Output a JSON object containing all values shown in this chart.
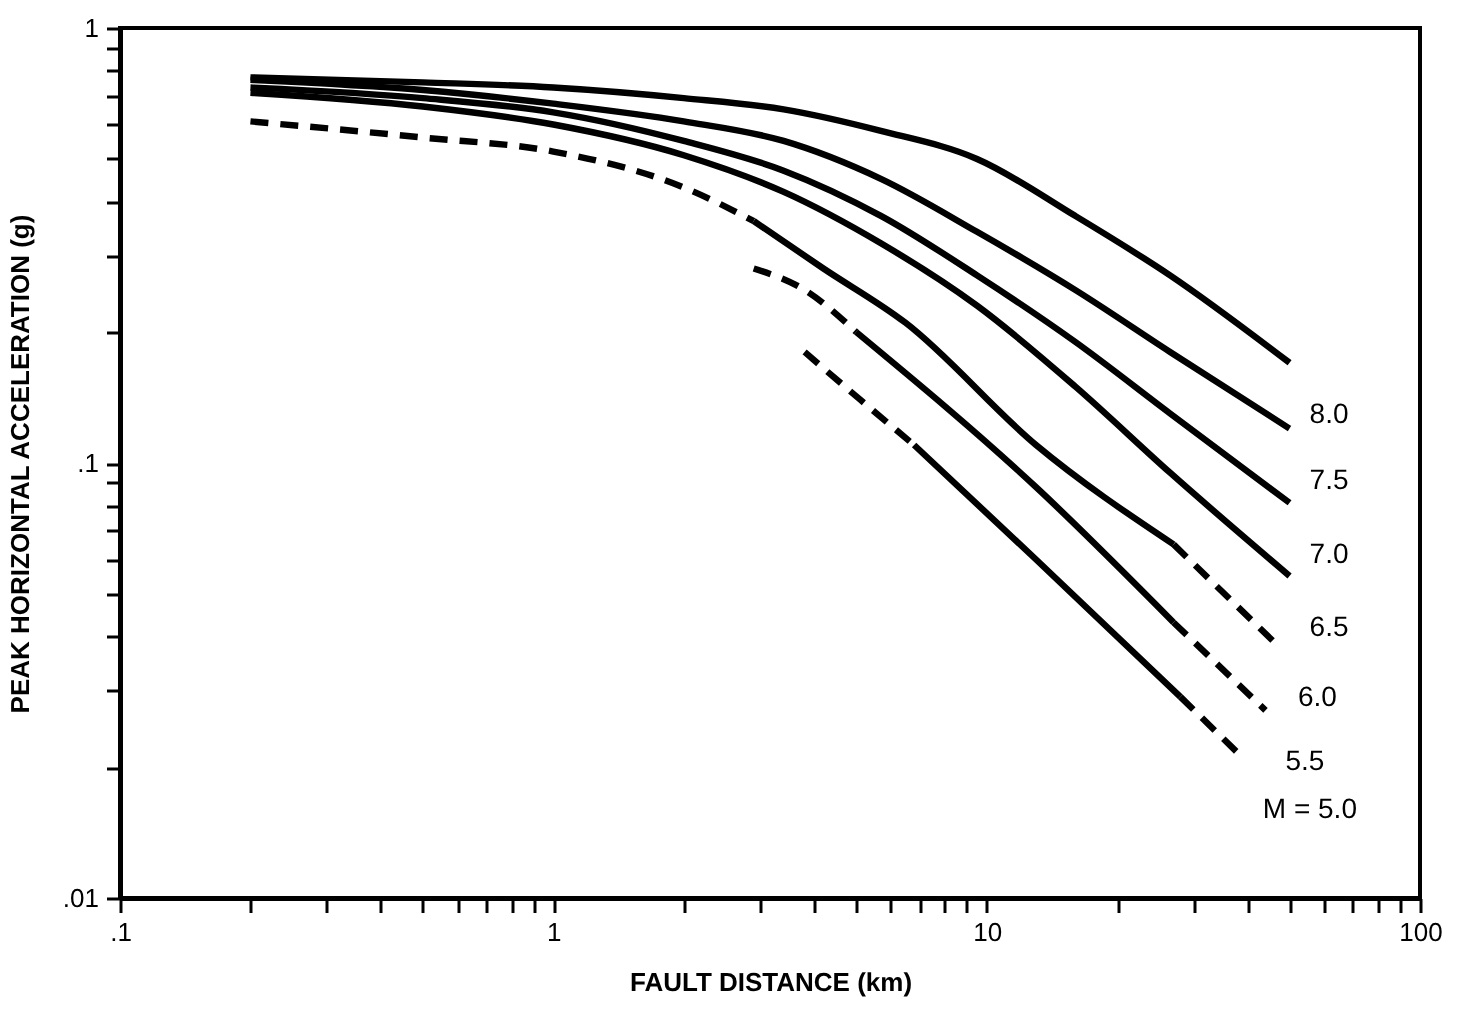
{
  "chart_data": {
    "type": "line",
    "xlabel": "FAULT DISTANCE (km)",
    "ylabel": "PEAK HORIZONTAL ACCELERATION (g)",
    "log": "xy",
    "grid": false,
    "marker": "none",
    "xlim": [
      0.1,
      100
    ],
    "ylim": [
      0.01,
      1
    ],
    "xticks": [
      {
        "value": 0.1,
        "label": ".1"
      },
      {
        "value": 0.2,
        "label": null
      },
      {
        "value": 0.3,
        "label": null
      },
      {
        "value": 0.4,
        "label": null
      },
      {
        "value": 0.5,
        "label": null
      },
      {
        "value": 0.6,
        "label": null
      },
      {
        "value": 0.7,
        "label": null
      },
      {
        "value": 0.8,
        "label": null
      },
      {
        "value": 0.9,
        "label": null
      },
      1,
      {
        "value": 2,
        "label": null
      },
      {
        "value": 3,
        "label": null
      },
      {
        "value": 4,
        "label": null
      },
      {
        "value": 5,
        "label": null
      },
      {
        "value": 6,
        "label": null
      },
      {
        "value": 7,
        "label": null
      },
      {
        "value": 8,
        "label": null
      },
      {
        "value": 9,
        "label": null
      },
      10,
      {
        "value": 20,
        "label": null
      },
      {
        "value": 30,
        "label": null
      },
      {
        "value": 40,
        "label": null
      },
      {
        "value": 50,
        "label": null
      },
      {
        "value": 60,
        "label": null
      },
      {
        "value": 70,
        "label": null
      },
      {
        "value": 80,
        "label": null
      },
      {
        "value": 90,
        "label": null
      },
      100
    ],
    "yticks": [
      {
        "value": 0.01,
        "label": ".01"
      },
      {
        "value": 0.02,
        "label": null
      },
      {
        "value": 0.03,
        "label": null
      },
      {
        "value": 0.04,
        "label": null
      },
      {
        "value": 0.05,
        "label": null
      },
      {
        "value": 0.06,
        "label": null
      },
      {
        "value": 0.07,
        "label": null
      },
      {
        "value": 0.08,
        "label": null
      },
      {
        "value": 0.09,
        "label": null
      },
      {
        "value": 0.1,
        "label": ".1"
      },
      {
        "value": 0.2,
        "label": null
      },
      {
        "value": 0.3,
        "label": null
      },
      {
        "value": 0.4,
        "label": null
      },
      {
        "value": 0.5,
        "label": null
      },
      {
        "value": 0.6,
        "label": null
      },
      {
        "value": 0.7,
        "label": null
      },
      {
        "value": 0.8,
        "label": null
      },
      {
        "value": 0.9,
        "label": null
      },
      1
    ],
    "series": [
      {
        "name": "8.0",
        "color": "#000000",
        "line_style": "solid",
        "x": [
          0.2,
          0.5,
          1,
          2,
          3.4,
          5.7,
          9.5,
          16,
          26.5,
          50
        ],
        "values": [
          0.77,
          0.75,
          0.73,
          0.69,
          0.65,
          0.58,
          0.5,
          0.37,
          0.27,
          0.17
        ]
      },
      {
        "name": "7.5",
        "color": "#000000",
        "line_style": "solid",
        "x": [
          0.2,
          0.5,
          1,
          2,
          3.4,
          5.7,
          9.5,
          16,
          26.5,
          50
        ],
        "values": [
          0.76,
          0.72,
          0.67,
          0.61,
          0.55,
          0.45,
          0.34,
          0.25,
          0.18,
          0.12
        ]
      },
      {
        "name": "7.0",
        "color": "#000000",
        "line_style": "solid",
        "x": [
          0.2,
          0.5,
          1,
          2,
          3.4,
          5.7,
          9.5,
          16,
          26.5,
          50
        ],
        "values": [
          0.73,
          0.69,
          0.64,
          0.55,
          0.47,
          0.37,
          0.27,
          0.19,
          0.13,
          0.081
        ]
      },
      {
        "name": "6.5",
        "color": "#000000",
        "line_style": "solid",
        "x": [
          0.2,
          0.5,
          1,
          2,
          3.4,
          5.7,
          9.5,
          16,
          26.5,
          50
        ],
        "values": [
          0.71,
          0.66,
          0.6,
          0.51,
          0.42,
          0.32,
          0.23,
          0.15,
          0.095,
          0.055
        ]
      },
      {
        "color": "#000000",
        "line_style": "dashed",
        "x": [
          0.2,
          0.5,
          1,
          2,
          2.9
        ],
        "values": [
          0.61,
          0.56,
          0.52,
          0.43,
          0.36
        ]
      },
      {
        "color": "#000000",
        "line_style": "solid",
        "x": [
          2.9,
          4.2,
          6.5,
          13,
          27
        ],
        "values": [
          0.36,
          0.28,
          0.21,
          0.11,
          0.065
        ]
      },
      {
        "name": "6.0",
        "color": "#000000",
        "line_style": "dashed",
        "x": [
          27,
          47
        ],
        "values": [
          0.065,
          0.038
        ]
      },
      {
        "color": "#000000",
        "line_style": "dashed",
        "x": [
          2.9,
          3.8,
          5
        ],
        "values": [
          0.28,
          0.25,
          0.2
        ]
      },
      {
        "color": "#000000",
        "line_style": "solid",
        "x": [
          5,
          13,
          27
        ],
        "values": [
          0.2,
          0.088,
          0.043
        ]
      },
      {
        "name": "5.5",
        "color": "#000000",
        "line_style": "dashed",
        "x": [
          27,
          44
        ],
        "values": [
          0.043,
          0.027
        ]
      },
      {
        "color": "#000000",
        "line_style": "dashed",
        "x": [
          3.8,
          5.1,
          6.8
        ],
        "values": [
          0.18,
          0.14,
          0.11
        ]
      },
      {
        "color": "#000000",
        "line_style": "solid",
        "x": [
          6.8,
          13,
          28
        ],
        "values": [
          0.11,
          0.06,
          0.029
        ]
      },
      {
        "name": "M = 5.0",
        "color": "#000000",
        "line_style": "dashed",
        "x": [
          28,
          39
        ],
        "values": [
          0.029,
          0.021
        ]
      }
    ]
  }
}
